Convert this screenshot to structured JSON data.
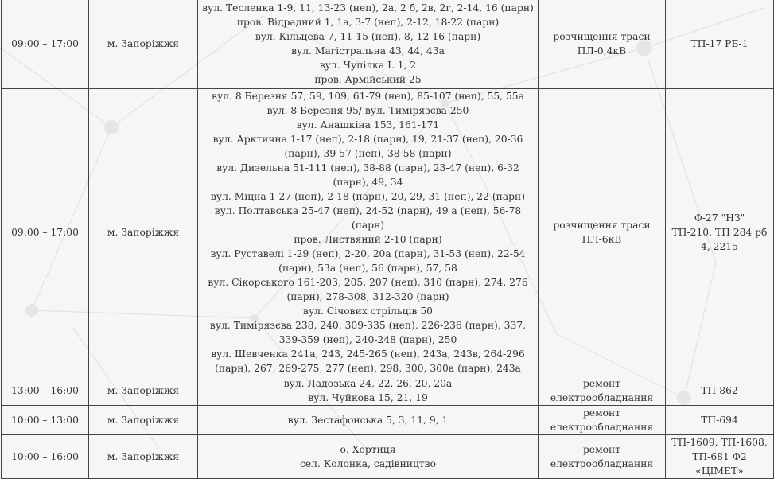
{
  "rows": [
    {
      "time": "09:00 – 17:00",
      "city": "м. Запоріжжя",
      "addresses": [
        "вул. Тесленка 1-9, 11, 13-23 (неп), 2а, 2 б, 2в, 2г, 2-14, 16 (парн)",
        "пров. Відрадний 1, 1а, 3-7 (неп), 2-12, 18-22 (парн)",
        "вул. Кільцева 7, 11-15 (неп), 8, 12-16 (парн)",
        "вул. Магістральна 43, 44, 43а",
        "вул. Чупілка І. 1, 2",
        "пров. Армійський 25"
      ],
      "work": [
        "розчищення траси",
        "ПЛ-0,4кВ"
      ],
      "tp": [
        "ТП-17 РБ-1"
      ]
    },
    {
      "time": "09:00 – 17:00",
      "city": "м. Запоріжжя",
      "addresses": [
        "вул. 8 Березня 57, 59, 109, 61-79 (неп), 85-107 (неп), 55, 55а",
        "вул. 8 Березня 95/ вул. Тимірязєва 250",
        "вул. Анашкіна 153, 161-171",
        "вул. Арктична 1-17 (неп), 2-18 (парн), 19, 21-37 (неп), 20-36 (парн), 39-57 (неп), 38-58 (парн)",
        "вул. Дизельна 51-111 (неп), 38-88 (парн), 23-47 (неп), 6-32 (парн), 49, 34",
        "вул. Міцна 1-27 (неп), 2-18 (парн), 20, 29, 31 (неп), 22 (парн)",
        "вул. Полтавська 25-47 (неп), 24-52 (парн), 49 а (неп), 56-78 (парн)",
        "пров. Листвяний 2-10 (парн)",
        "вул. Руставелі 1-29 (неп), 2-20, 20а (парн), 31-53 (неп), 22-54 (парн), 53а (неп), 56 (парн), 57, 58",
        "вул. Сікорського 161-203, 205, 207 (неп), 310 (парн), 274, 276 (парн), 278-308, 312-320 (парн)",
        "вул. Січових стрільців 50",
        "вул. Тимірязєва 238, 240, 309-335 (неп), 226-236 (парн), 337, 339-359 (неп), 240-248 (парн), 250",
        "вул. Шевченка 241а, 243, 245-265 (неп), 243а, 243в, 264-296 (парн), 267, 269-275, 277 (неп), 298, 300, 300а (парн), 243а"
      ],
      "work": [
        "розчищення траси",
        "ПЛ-6кВ"
      ],
      "tp": [
        "Ф-27 \"НЗ\"",
        "ТП-210, ТП 284 рб 4, 2215"
      ]
    },
    {
      "time": "13:00 – 16:00",
      "city": "м. Запоріжжя",
      "addresses": [
        "вул. Ладозька 24, 22, 26, 20, 20а",
        "вул. Чуйкова 15, 21, 19"
      ],
      "work": [
        "ремонт",
        "електрообладнання"
      ],
      "tp": [
        "ТП-862"
      ]
    },
    {
      "time": "10:00 – 13:00",
      "city": "м. Запоріжжя",
      "addresses": [
        "вул. Зестафонська 5, 3, 11, 9, 1"
      ],
      "work": [
        "ремонт",
        "електрообладнання"
      ],
      "tp": [
        "ТП-694"
      ]
    },
    {
      "time": "10:00 – 16:00",
      "city": "м. Запоріжжя",
      "addresses": [
        "о. Хортиця",
        "сел. Колонка, садівництво"
      ],
      "work": [
        "ремонт",
        "електрообладнання"
      ],
      "tp": [
        "ТП-1609, ТП-1608,",
        "ТП-681 Ф2 «ЦІМЕТ»"
      ]
    }
  ],
  "colors": {
    "background": "#f6f6f6",
    "border": "#444444",
    "text": "#333333"
  }
}
